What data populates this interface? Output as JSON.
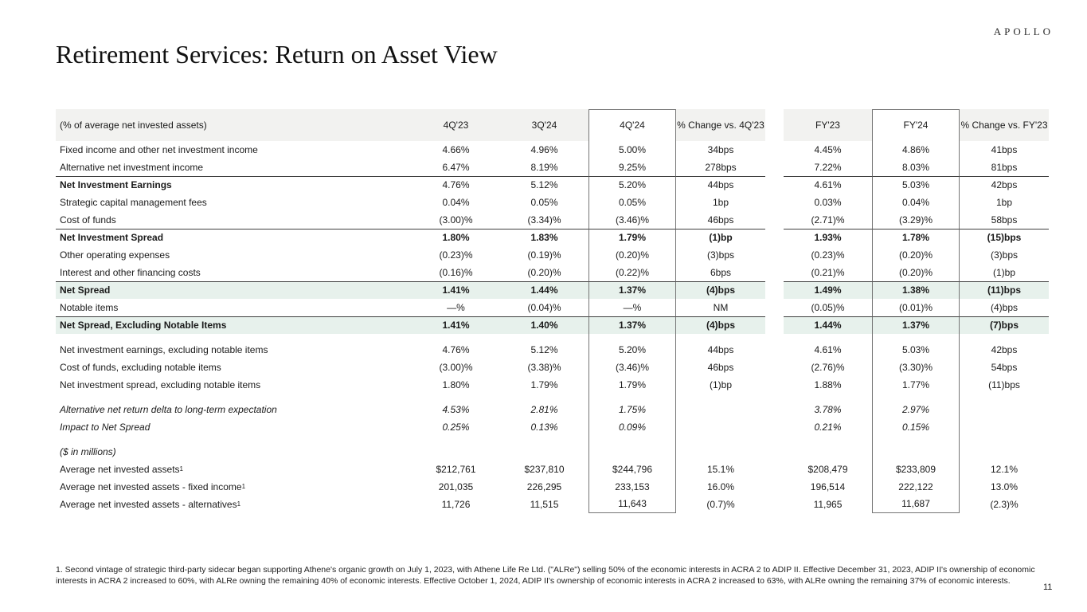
{
  "logo": "APOLLO",
  "title": "Retirement Services: Return on Asset View",
  "page_number": "11",
  "footnote": "1. Second vintage of strategic third-party sidecar began supporting Athene's organic growth on July 1, 2023, with Athene Life Re Ltd. (\"ALRe\") selling 50% of the economic interests in ACRA 2 to ADIP II. Effective December 31, 2023, ADIP II's ownership of economic interests in ACRA 2 increased to 60%, with ALRe owning the remaining 40% of economic interests. Effective October 1, 2024, ADIP II's ownership of economic interests in ACRA 2 increased to 63%, with ALRe owning the remaining 37% of economic interests.",
  "colors": {
    "highlight_green": "#e7f1ec",
    "header_gray": "#f2f2f0",
    "box_border": "#757575",
    "rule_dark": "#3f3f3f"
  },
  "table": {
    "header": {
      "label": "(% of average net invested assets)",
      "cols": [
        "4Q'23",
        "3Q'24",
        "4Q'24",
        "% Change vs. 4Q'23",
        "FY'23",
        "FY'24",
        "% Change vs. FY'23"
      ]
    },
    "rows": [
      {
        "label": "Fixed income and other net investment income",
        "values": [
          "4.66%",
          "4.96%",
          "5.00%",
          "34bps",
          "4.45%",
          "4.86%",
          "41bps"
        ]
      },
      {
        "label": "Alternative net investment income",
        "values": [
          "6.47%",
          "8.19%",
          "9.25%",
          "278bps",
          "7.22%",
          "8.03%",
          "81bps"
        ]
      },
      {
        "label": "Net Investment Earnings",
        "bold_label": true,
        "top_border": true,
        "values": [
          "4.76%",
          "5.12%",
          "5.20%",
          "44bps",
          "4.61%",
          "5.03%",
          "42bps"
        ]
      },
      {
        "label": "Strategic capital management fees",
        "values": [
          "0.04%",
          "0.05%",
          "0.05%",
          "1bp",
          "0.03%",
          "0.04%",
          "1bp"
        ]
      },
      {
        "label": "Cost of funds",
        "values": [
          "(3.00)%",
          "(3.34)%",
          "(3.46)%",
          "46bps",
          "(2.71)%",
          "(3.29)%",
          "58bps"
        ]
      },
      {
        "label": "Net Investment Spread",
        "bold_label": true,
        "bold_values": true,
        "top_border": true,
        "values": [
          "1.80%",
          "1.83%",
          "1.79%",
          "(1)bp",
          "1.93%",
          "1.78%",
          "(15)bps"
        ]
      },
      {
        "label": "Other operating expenses",
        "values": [
          "(0.23)%",
          "(0.19)%",
          "(0.20)%",
          "(3)bps",
          "(0.23)%",
          "(0.20)%",
          "(3)bps"
        ]
      },
      {
        "label": "Interest and other financing costs",
        "values": [
          "(0.16)%",
          "(0.20)%",
          "(0.22)%",
          "6bps",
          "(0.21)%",
          "(0.20)%",
          "(1)bp"
        ]
      },
      {
        "label": "Net Spread",
        "bold_label": true,
        "bold_values": true,
        "top_border": true,
        "highlight": true,
        "values": [
          "1.41%",
          "1.44%",
          "1.37%",
          "(4)bps",
          "1.49%",
          "1.38%",
          "(11)bps"
        ]
      },
      {
        "label": "Notable items",
        "values": [
          "—%",
          "(0.04)%",
          "—%",
          "NM",
          "(0.05)%",
          "(0.01)%",
          "(4)bps"
        ]
      },
      {
        "label": "Net Spread, Excluding Notable Items",
        "bold_label": true,
        "bold_values": true,
        "top_border": true,
        "highlight": true,
        "values": [
          "1.41%",
          "1.40%",
          "1.37%",
          "(4)bps",
          "1.44%",
          "1.37%",
          "(7)bps"
        ]
      },
      {
        "spacer": true
      },
      {
        "label": "Net investment earnings, excluding notable items",
        "values": [
          "4.76%",
          "5.12%",
          "5.20%",
          "44bps",
          "4.61%",
          "5.03%",
          "42bps"
        ]
      },
      {
        "label": "Cost of funds, excluding notable items",
        "values": [
          "(3.00)%",
          "(3.38)%",
          "(3.46)%",
          "46bps",
          "(2.76)%",
          "(3.30)%",
          "54bps"
        ]
      },
      {
        "label": "Net investment spread, excluding notable items",
        "values": [
          "1.80%",
          "1.79%",
          "1.79%",
          "(1)bp",
          "1.88%",
          "1.77%",
          "(11)bps"
        ]
      },
      {
        "spacer": true
      },
      {
        "label": "Alternative net return delta to long-term expectation",
        "italic": true,
        "values": [
          "4.53%",
          "2.81%",
          "1.75%",
          "",
          "3.78%",
          "2.97%",
          ""
        ]
      },
      {
        "label": "Impact to Net Spread",
        "italic": true,
        "indent": 1,
        "values": [
          "0.25%",
          "0.13%",
          "0.09%",
          "",
          "0.21%",
          "0.15%",
          ""
        ]
      },
      {
        "spacer": true
      },
      {
        "label": "($ in millions)",
        "italic": true,
        "values": [
          "",
          "",
          "",
          "",
          "",
          "",
          ""
        ]
      },
      {
        "label": "Average net invested assets",
        "sup": "1",
        "values": [
          "$212,761",
          "$237,810",
          "$244,796",
          "15.1%",
          "$208,479",
          "$233,809",
          "12.1%"
        ]
      },
      {
        "label": "Average net invested assets - fixed income",
        "sup": "1",
        "indent": 1,
        "values": [
          "201,035",
          "226,295",
          "233,153",
          "16.0%",
          "196,514",
          "222,122",
          "13.0%"
        ]
      },
      {
        "label": "Average net invested assets - alternatives",
        "sup": "1",
        "indent": 1,
        "values": [
          "11,726",
          "11,515",
          "11,643",
          "(0.7)%",
          "11,965",
          "11,687",
          "(2.3)%"
        ]
      }
    ]
  }
}
